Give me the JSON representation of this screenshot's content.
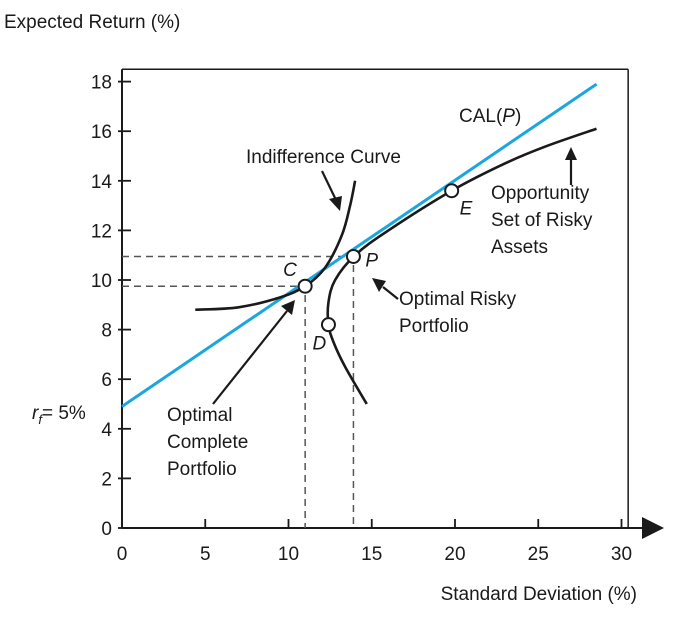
{
  "chart_data": {
    "type": "line",
    "title": "",
    "ylabel": "Expected Return (%)",
    "xlabel": "Standard Deviation (%)",
    "xlim": [
      0,
      31
    ],
    "ylim": [
      0,
      18.5
    ],
    "x_ticks": [
      0,
      5,
      10,
      15,
      20,
      25,
      30
    ],
    "y_ticks": [
      0,
      2,
      4,
      6,
      8,
      10,
      12,
      14,
      16,
      18
    ],
    "rf_label": "r",
    "rf_sub": "f",
    "rf_value_text": "= 5%",
    "rf": 5,
    "grid": false,
    "colors": {
      "cal": "#1ba6e0",
      "curves": "#1a1a1a",
      "guides": "#555555"
    },
    "series": [
      {
        "name": "CAL(P)",
        "x": [
          0,
          28.5
        ],
        "y": [
          4.9,
          17.9
        ]
      },
      {
        "name": "Opportunity Set of Risky Assets",
        "x": [
          14.7,
          13.4,
          12.7,
          12.4,
          12.4,
          12.8,
          14.0,
          16.0,
          19.8,
          23.0,
          25.5,
          28.5
        ],
        "y": [
          5.0,
          6.5,
          7.5,
          8.2,
          9.1,
          10.0,
          11.0,
          12.0,
          13.6,
          14.7,
          15.4,
          16.1
        ]
      },
      {
        "name": "Indifference Curve",
        "x": [
          4.4,
          7.0,
          9.5,
          11.0,
          12.2,
          13.2,
          13.7,
          14.0
        ],
        "y": [
          8.8,
          8.9,
          9.3,
          9.75,
          10.5,
          11.8,
          13.0,
          14.0
        ]
      }
    ],
    "points": [
      {
        "label": "C",
        "x": 11.0,
        "y": 9.75
      },
      {
        "label": "P",
        "x": 13.9,
        "y": 10.95
      },
      {
        "label": "D",
        "x": 12.4,
        "y": 8.2
      },
      {
        "label": "E",
        "x": 19.8,
        "y": 13.6
      }
    ],
    "annotations": {
      "cal": "CAL(",
      "cal_p": "P",
      "cal_end": ")",
      "indifference": "Indifference Curve",
      "opportunity_1": "Opportunity",
      "opportunity_2": "Set of Risky",
      "opportunity_3": "Assets",
      "optimal_risky_1": "Optimal Risky",
      "optimal_risky_2": "Portfolio",
      "optimal_complete_1": "Optimal",
      "optimal_complete_2": "Complete",
      "optimal_complete_3": "Portfolio"
    }
  }
}
